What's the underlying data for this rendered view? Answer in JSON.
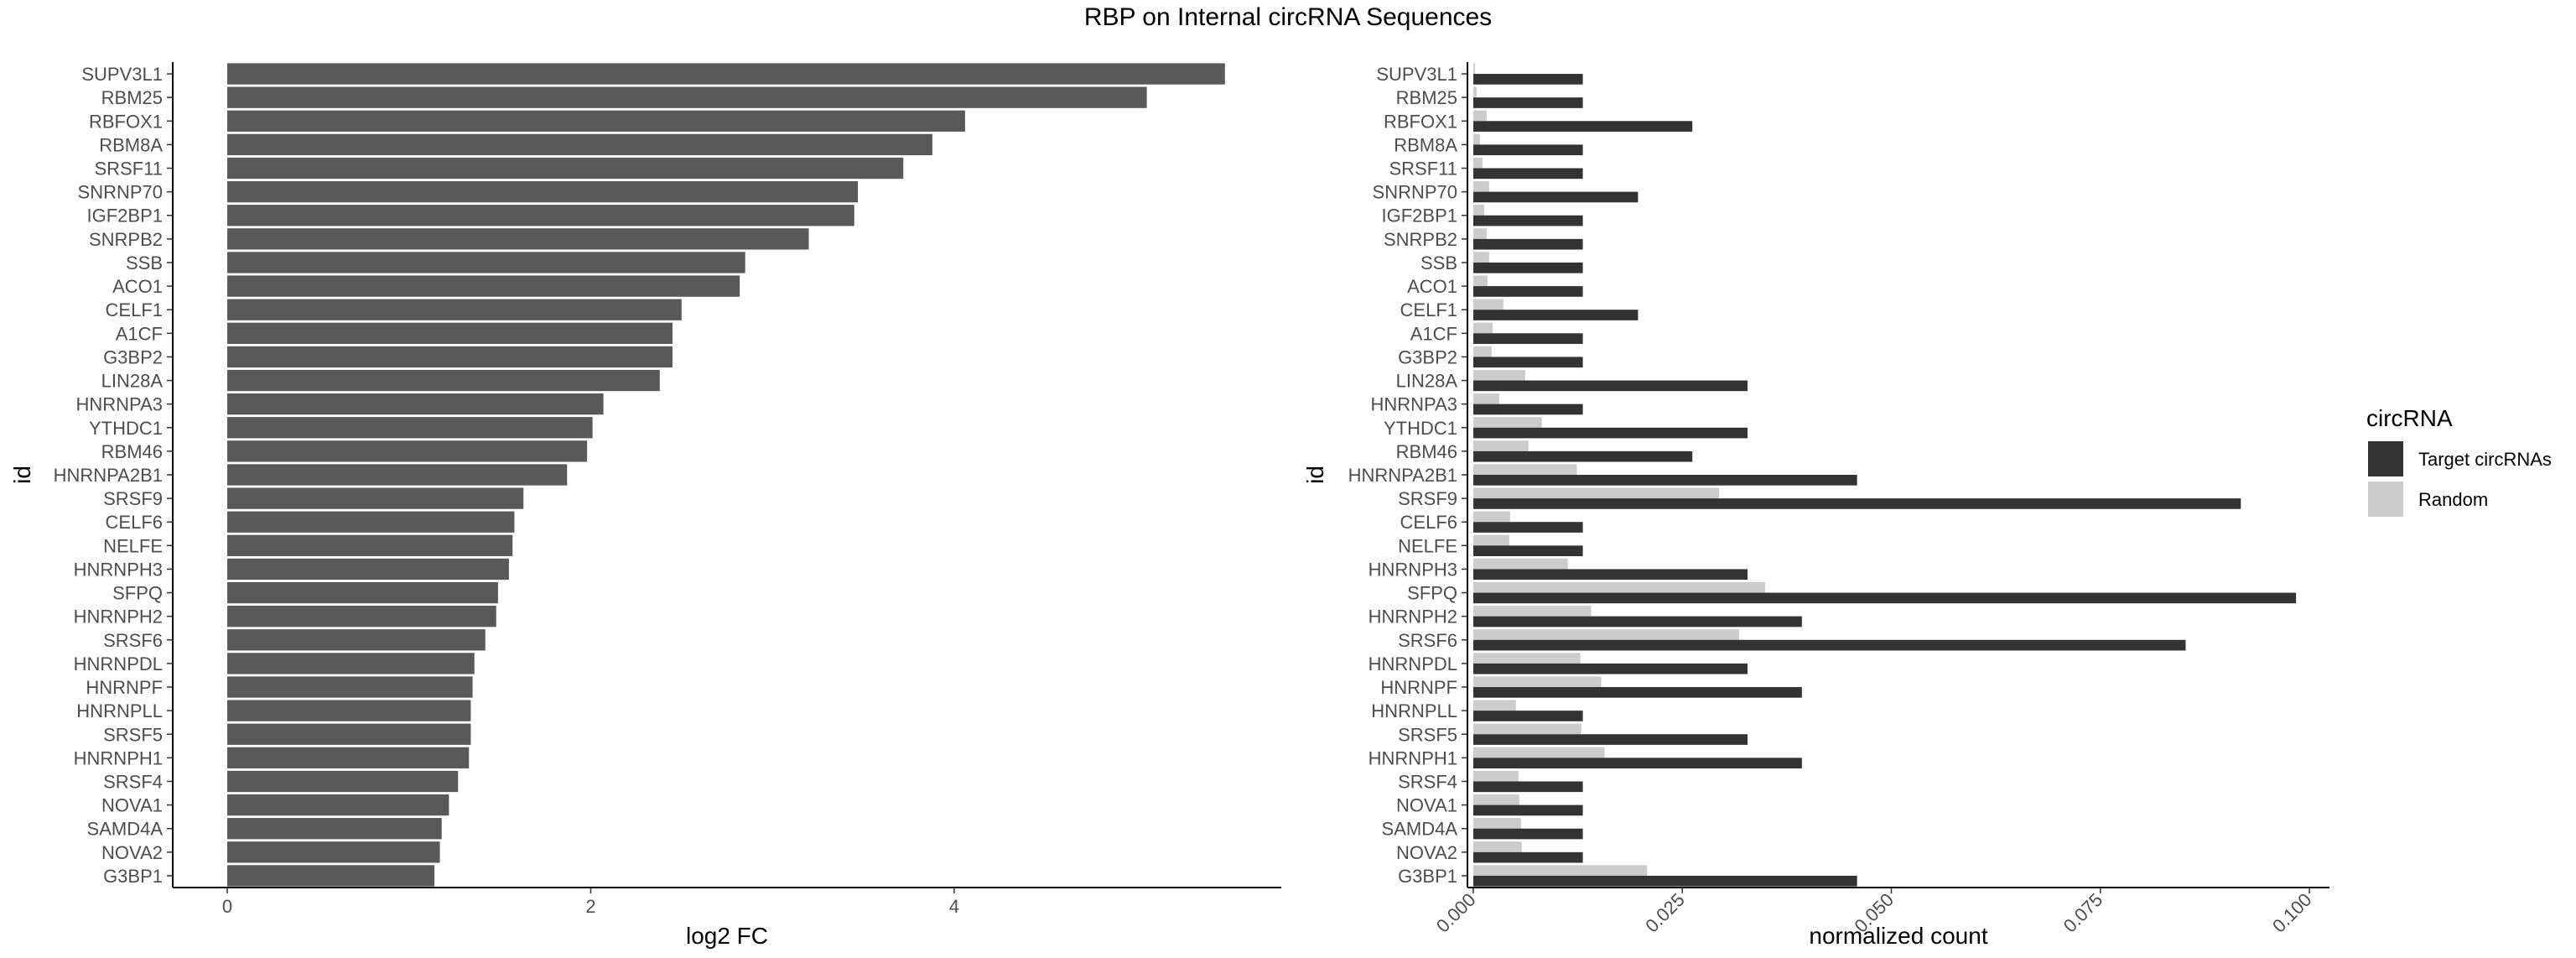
{
  "title": "RBP on Internal circRNA Sequences",
  "chart_data": [
    {
      "type": "bar",
      "orientation": "horizontal",
      "xlabel": "log2 FC",
      "ylabel": "id",
      "xlim": [
        -0.3,
        5.8
      ],
      "xticks": [
        0,
        2,
        4
      ],
      "xticklabels": [
        "0",
        "2",
        "4"
      ],
      "bar_color": "#595959",
      "categories": [
        "SUPV3L1",
        "RBM25",
        "RBFOX1",
        "RBM8A",
        "SRSF11",
        "SNRNP70",
        "IGF2BP1",
        "SNRPB2",
        "SSB",
        "ACO1",
        "CELF1",
        "A1CF",
        "G3BP2",
        "LIN28A",
        "HNRNPA3",
        "YTHDC1",
        "RBM46",
        "HNRNPA2B1",
        "SRSF9",
        "CELF6",
        "NELFE",
        "HNRNPH3",
        "SFPQ",
        "HNRNPH2",
        "SRSF6",
        "HNRNPDL",
        "HNRNPF",
        "HNRNPLL",
        "SRSF5",
        "HNRNPH1",
        "SRSF4",
        "NOVA1",
        "SAMD4A",
        "NOVA2",
        "G3BP1"
      ],
      "values": [
        5.49,
        5.06,
        4.06,
        3.88,
        3.72,
        3.47,
        3.45,
        3.2,
        2.85,
        2.82,
        2.5,
        2.45,
        2.45,
        2.38,
        2.07,
        2.01,
        1.98,
        1.87,
        1.63,
        1.58,
        1.57,
        1.55,
        1.49,
        1.48,
        1.42,
        1.36,
        1.35,
        1.34,
        1.34,
        1.33,
        1.27,
        1.22,
        1.18,
        1.17,
        1.14
      ]
    },
    {
      "type": "bar",
      "orientation": "horizontal",
      "xlabel": "normalized count",
      "ylabel": "id",
      "xlim": [
        -0.0007,
        0.1024
      ],
      "xticks": [
        0,
        0.025,
        0.05,
        0.075,
        0.1
      ],
      "xticklabels": [
        "0.000",
        "0.025",
        "0.050",
        "0.075",
        "0.100"
      ],
      "categories": [
        "SUPV3L1",
        "RBM25",
        "RBFOX1",
        "RBM8A",
        "SRSF11",
        "SNRNP70",
        "IGF2BP1",
        "SNRPB2",
        "SSB",
        "ACO1",
        "CELF1",
        "A1CF",
        "G3BP2",
        "LIN28A",
        "HNRNPA3",
        "YTHDC1",
        "RBM46",
        "HNRNPA2B1",
        "SRSF9",
        "CELF6",
        "NELFE",
        "HNRNPH3",
        "SFPQ",
        "HNRNPH2",
        "SRSF6",
        "HNRNPDL",
        "HNRNPF",
        "HNRNPLL",
        "SRSF5",
        "HNRNPH1",
        "SRSF4",
        "NOVA1",
        "SAMD4A",
        "NOVA2",
        "G3BP1"
      ],
      "legend": {
        "title": "circRNA",
        "placement": "right"
      },
      "series": [
        {
          "name": "Target circRNAs",
          "color": "#333333",
          "values": [
            0.0131,
            0.0131,
            0.0262,
            0.0131,
            0.0131,
            0.0197,
            0.0131,
            0.0131,
            0.0131,
            0.0131,
            0.0197,
            0.0131,
            0.0131,
            0.0328,
            0.0131,
            0.0328,
            0.0262,
            0.0459,
            0.0918,
            0.0131,
            0.0131,
            0.0328,
            0.0984,
            0.0393,
            0.0852,
            0.0328,
            0.0393,
            0.0131,
            0.0328,
            0.0393,
            0.0131,
            0.0131,
            0.0131,
            0.0131,
            0.0459
          ]
        },
        {
          "name": "Random",
          "color": "#cccccc",
          "values": [
            0.0002,
            0.0004,
            0.0016,
            0.0008,
            0.0011,
            0.0019,
            0.0013,
            0.0016,
            0.0019,
            0.0017,
            0.0036,
            0.0023,
            0.0022,
            0.0062,
            0.0031,
            0.0082,
            0.0066,
            0.0124,
            0.0294,
            0.0044,
            0.0043,
            0.0113,
            0.0349,
            0.0141,
            0.0318,
            0.0128,
            0.0153,
            0.0051,
            0.0129,
            0.0157,
            0.0054,
            0.0055,
            0.0057,
            0.0058,
            0.0208
          ]
        }
      ]
    }
  ]
}
